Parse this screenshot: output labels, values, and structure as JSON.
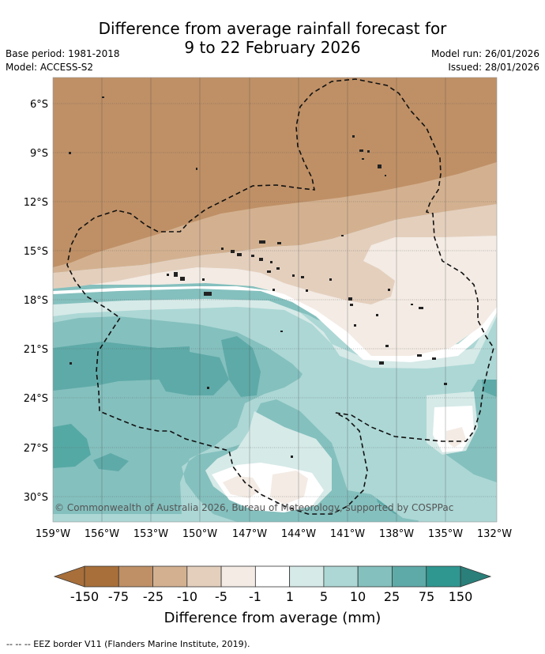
{
  "title": {
    "line1": "Difference from average rainfall forecast for",
    "line2": "9 to 22 February 2026"
  },
  "meta": {
    "base_period": "Base period: 1981-2018",
    "model": "Model: ACCESS-S2",
    "model_run": "Model run: 26/01/2026",
    "issued": "Issued: 28/01/2026"
  },
  "map": {
    "copyright": "© Commonwealth of Australia 2026, Bureau of Meteorology, supported by COSPPac",
    "lat_labels": [
      "6°S",
      "9°S",
      "12°S",
      "15°S",
      "18°S",
      "21°S",
      "24°S",
      "27°S",
      "30°S"
    ],
    "lon_labels": [
      "159°W",
      "156°W",
      "153°W",
      "150°W",
      "147°W",
      "144°W",
      "141°W",
      "138°W",
      "135°W",
      "132°W"
    ]
  },
  "colorbar": {
    "title": "Difference from average (mm)",
    "labels": [
      "-150",
      "-75",
      "-25",
      "-10",
      "-5",
      "-1",
      "1",
      "5",
      "10",
      "25",
      "75",
      "150"
    ],
    "colors": [
      "#a86f3a",
      "#bf9066",
      "#d3b190",
      "#e4cfbd",
      "#f3ebe4",
      "#ffffff",
      "#d6eae8",
      "#acd7d5",
      "#84c0be",
      "#5eaaa8",
      "#2f9690"
    ]
  },
  "footnote": "--  --  -- EEZ border V11 (Flanders Marine Institute, 2019).",
  "icons": {
    "eez_border": "dashed-line-icon"
  }
}
